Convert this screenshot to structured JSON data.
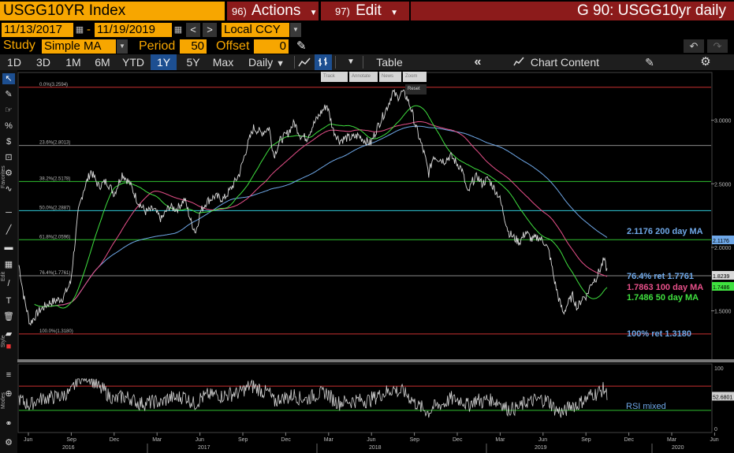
{
  "header": {
    "security": "USGG10YR Index",
    "actions_num": "96)",
    "actions_label": "Actions",
    "edit_num": "97)",
    "edit_label": "Edit",
    "window_title": "G 90: USGG10yr daily"
  },
  "range": {
    "start_date": "11/13/2017",
    "dash": "-",
    "end_date": "11/19/2019",
    "currency": "Local CCY"
  },
  "study": {
    "label": "Study",
    "value": "Simple MA",
    "period_label": "Period",
    "period_value": "50",
    "offset_label": "Offset",
    "offset_value": "0"
  },
  "toolbar": {
    "periods": [
      "1D",
      "3D",
      "1M",
      "6M",
      "YTD",
      "1Y",
      "5Y",
      "Max"
    ],
    "selected_period": "1Y",
    "frequency": "Daily",
    "table_label": "Table",
    "chart_content_label": "Chart Content"
  },
  "chart_tools": {
    "track": "Track",
    "annotate": "Annotate",
    "news": "News",
    "zoom": "Zoom",
    "reset": "Reset"
  },
  "sidebar": {
    "favorites": "Favorites",
    "edit": "Edit",
    "style": "Style",
    "modes": "Modes"
  },
  "colors": {
    "brand_orange": "#f7a600",
    "menu_red": "#8c1b1b",
    "price_line": "#d8d8d8",
    "ma50": "#3fe03f",
    "ma100": "#e8508a",
    "ma200": "#6fa8e8",
    "fib_red": "#c83030",
    "fib_green": "#2fbf2f",
    "fib_gray": "#8a8a8a",
    "fib_cyan": "#30c8d8"
  },
  "chart_data": {
    "type": "line",
    "title": "USGG10YR Index",
    "x_tick_labels": [
      "Jun",
      "Sep",
      "Dec",
      "Mar",
      "Jun",
      "Sep",
      "Dec",
      "Mar",
      "Jun",
      "Sep",
      "Dec",
      "Mar",
      "Jun",
      "Sep",
      "Dec",
      "Mar",
      "Jun"
    ],
    "x_year_labels": [
      "2016",
      "2017",
      "2018",
      "2019",
      "2020"
    ],
    "y_ticks": [
      "3.0000",
      "2.5000",
      "2.0000",
      "1.5000"
    ],
    "ylim": [
      1.25,
      3.35
    ],
    "rsi_ticks": [
      "100",
      "50",
      "0"
    ],
    "rsi_ylim": [
      0,
      100
    ],
    "fib_levels": [
      {
        "label": "0.0%(3.2594)",
        "value": 3.2594,
        "color": "#c83030"
      },
      {
        "label": "23.6%(2.8013)",
        "value": 2.8013,
        "color": "#8a8a8a"
      },
      {
        "label": "38.2%(2.5178)",
        "value": 2.5178,
        "color": "#2fbf2f"
      },
      {
        "label": "50.0%(2.2887)",
        "value": 2.2887,
        "color": "#30c8d8"
      },
      {
        "label": "61.8%(2.0596)",
        "value": 2.0596,
        "color": "#2fbf2f"
      },
      {
        "label": "76.4%(1.7761)",
        "value": 1.7761,
        "color": "#8a8a8a"
      },
      {
        "label": "100.0%(1.3180)",
        "value": 1.318,
        "color": "#c83030"
      }
    ],
    "legend": [
      {
        "text": "2.1176 200 day MA",
        "value": 2.1176,
        "color": "#6fa8e8"
      },
      {
        "text": "76.4% ret 1.7761",
        "value": 1.7761,
        "color": "#6fa8e8"
      },
      {
        "text": "1.7863 100 day MA",
        "value": 1.7863,
        "color": "#e8508a"
      },
      {
        "text": "1.7486 50 day MA",
        "value": 1.7486,
        "color": "#3fe03f"
      },
      {
        "text": "100% ret 1.3180",
        "value": 1.318,
        "color": "#6fa8e8"
      }
    ],
    "last_value_tags": [
      {
        "text": "2.1176",
        "value": 2.1176,
        "color": "#6fa8e8"
      },
      {
        "text": "1.8239",
        "value": 1.8239,
        "color": "#d8d8d8"
      },
      {
        "text": "1.7486",
        "value": 1.7486,
        "color": "#3fe03f"
      }
    ],
    "rsi_label": "RSI mixed",
    "rsi_last_tag": "52.6801",
    "rsi_levels": [
      70,
      30
    ],
    "price_keypoints": [
      [
        0,
        1.86
      ],
      [
        6,
        1.62
      ],
      [
        14,
        1.4
      ],
      [
        26,
        1.5
      ],
      [
        38,
        1.56
      ],
      [
        56,
        1.6
      ],
      [
        66,
        1.72
      ],
      [
        76,
        2.28
      ],
      [
        82,
        2.44
      ],
      [
        92,
        2.6
      ],
      [
        102,
        2.48
      ],
      [
        112,
        2.52
      ],
      [
        122,
        2.42
      ],
      [
        132,
        2.58
      ],
      [
        142,
        2.5
      ],
      [
        152,
        2.36
      ],
      [
        162,
        2.28
      ],
      [
        172,
        2.3
      ],
      [
        182,
        2.22
      ],
      [
        192,
        2.32
      ],
      [
        202,
        2.3
      ],
      [
        212,
        2.38
      ],
      [
        220,
        2.2
      ],
      [
        226,
        2.12
      ],
      [
        232,
        2.28
      ],
      [
        240,
        2.36
      ],
      [
        250,
        2.4
      ],
      [
        262,
        2.38
      ],
      [
        272,
        2.47
      ],
      [
        282,
        2.58
      ],
      [
        292,
        2.8
      ],
      [
        300,
        2.94
      ],
      [
        310,
        2.9
      ],
      [
        320,
        2.94
      ],
      [
        326,
        2.72
      ],
      [
        334,
        2.84
      ],
      [
        344,
        2.9
      ],
      [
        352,
        2.98
      ],
      [
        360,
        2.88
      ],
      [
        368,
        2.86
      ],
      [
        376,
        2.96
      ],
      [
        386,
        3.06
      ],
      [
        394,
        3.12
      ],
      [
        402,
        2.92
      ],
      [
        410,
        2.84
      ],
      [
        418,
        2.86
      ],
      [
        426,
        2.86
      ],
      [
        434,
        2.88
      ],
      [
        442,
        2.84
      ],
      [
        450,
        2.82
      ],
      [
        458,
        2.94
      ],
      [
        466,
        3.04
      ],
      [
        472,
        3.12
      ],
      [
        478,
        3.22
      ],
      [
        484,
        3.18
      ],
      [
        490,
        3.22
      ],
      [
        496,
        3.18
      ],
      [
        502,
        3.08
      ],
      [
        506,
        2.98
      ],
      [
        512,
        2.86
      ],
      [
        518,
        2.74
      ],
      [
        524,
        2.58
      ],
      [
        530,
        2.72
      ],
      [
        536,
        2.7
      ],
      [
        544,
        2.68
      ],
      [
        552,
        2.72
      ],
      [
        560,
        2.66
      ],
      [
        566,
        2.62
      ],
      [
        574,
        2.42
      ],
      [
        580,
        2.52
      ],
      [
        586,
        2.56
      ],
      [
        592,
        2.5
      ],
      [
        600,
        2.54
      ],
      [
        606,
        2.48
      ],
      [
        614,
        2.4
      ],
      [
        620,
        2.26
      ],
      [
        626,
        2.12
      ],
      [
        632,
        2.08
      ],
      [
        640,
        2.04
      ],
      [
        648,
        2.12
      ],
      [
        656,
        2.06
      ],
      [
        664,
        2.08
      ],
      [
        672,
        2.04
      ],
      [
        678,
        1.96
      ],
      [
        684,
        1.76
      ],
      [
        690,
        1.6
      ],
      [
        696,
        1.48
      ],
      [
        702,
        1.56
      ],
      [
        708,
        1.62
      ],
      [
        714,
        1.52
      ],
      [
        720,
        1.6
      ],
      [
        726,
        1.62
      ],
      [
        732,
        1.72
      ],
      [
        738,
        1.76
      ],
      [
        744,
        1.84
      ],
      [
        748,
        1.9
      ],
      [
        752,
        1.82
      ]
    ]
  }
}
